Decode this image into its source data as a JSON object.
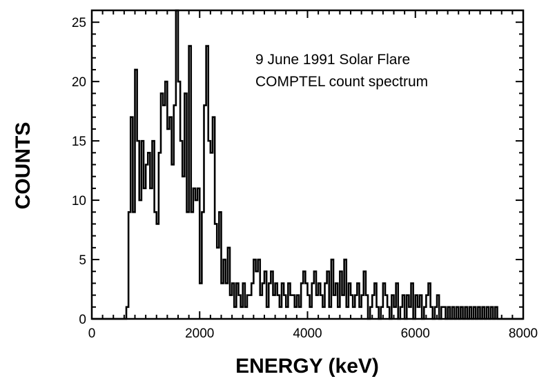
{
  "chart_data": {
    "type": "histogram-step",
    "annotation": [
      "9 June 1991 Solar Flare",
      "COMPTEL count spectrum"
    ],
    "xlabel": "ENERGY (keV)",
    "ylabel": "COUNTS",
    "xlim": [
      0,
      8000
    ],
    "ylim": [
      0,
      26
    ],
    "xticks": [
      0,
      2000,
      4000,
      6000,
      8000
    ],
    "xtick_labels": [
      "0",
      "2000",
      "4000",
      "6000",
      "8000"
    ],
    "yticks": [
      0,
      5,
      10,
      15,
      20,
      25
    ],
    "ytick_labels": [
      "0",
      "5",
      "10",
      "15",
      "20",
      "25"
    ],
    "grid": false,
    "bin_width_keV": 40,
    "bin_starts_keV": [
      640,
      680,
      720,
      760,
      800,
      840,
      880,
      920,
      960,
      1000,
      1040,
      1080,
      1120,
      1160,
      1200,
      1240,
      1280,
      1320,
      1360,
      1400,
      1440,
      1480,
      1520,
      1560,
      1600,
      1640,
      1680,
      1720,
      1760,
      1800,
      1840,
      1880,
      1920,
      1960,
      2000,
      2040,
      2080,
      2120,
      2160,
      2200,
      2240,
      2280,
      2320,
      2360,
      2400,
      2440,
      2480,
      2520,
      2560,
      2600,
      2640,
      2680,
      2720,
      2760,
      2800,
      2840,
      2880,
      2920,
      2960,
      3000,
      3040,
      3080,
      3120,
      3160,
      3200,
      3240,
      3280,
      3320,
      3360,
      3400,
      3440,
      3480,
      3520,
      3560,
      3600,
      3640,
      3680,
      3720,
      3760,
      3800,
      3840,
      3880,
      3920,
      3960,
      4000,
      4040,
      4080,
      4120,
      4160,
      4200,
      4240,
      4280,
      4320,
      4360,
      4400,
      4440,
      4480,
      4520,
      4560,
      4600,
      4640,
      4680,
      4720,
      4760,
      4800,
      4840,
      4880,
      4920,
      4960,
      5000,
      5040,
      5080,
      5120,
      5160,
      5200,
      5240,
      5280,
      5320,
      5360,
      5400,
      5440,
      5480,
      5520,
      5560,
      5600,
      5640,
      5680,
      5720,
      5760,
      5800,
      5840,
      5880,
      5920,
      5960,
      6000,
      6040,
      6080,
      6120,
      6160,
      6200,
      6240,
      6280,
      6320,
      6360,
      6400,
      6440,
      6480,
      6520,
      6560,
      6600,
      6640,
      6680,
      6720,
      6760,
      6800,
      6840,
      6880,
      6920,
      6960,
      7000,
      7040,
      7080,
      7120,
      7160,
      7200,
      7240,
      7280,
      7320,
      7360,
      7400,
      7440,
      7480,
      7520
    ],
    "counts": [
      1,
      9,
      17,
      9,
      21,
      15,
      10,
      15,
      11,
      13,
      14,
      11,
      15,
      9,
      8,
      14,
      19,
      18,
      20,
      16,
      17,
      13,
      18,
      26,
      20,
      15,
      12,
      19,
      9,
      23,
      9,
      11,
      10,
      11,
      3,
      9,
      18,
      23,
      15,
      14,
      17,
      8,
      6,
      9,
      3,
      5,
      3,
      6,
      2,
      3,
      1,
      3,
      2,
      1,
      3,
      1,
      2,
      2,
      3,
      5,
      4,
      5,
      2,
      3,
      4,
      1,
      3,
      4,
      2,
      3,
      2,
      1,
      3,
      2,
      1,
      3,
      2,
      2,
      1,
      2,
      1,
      3,
      4,
      3,
      2,
      1,
      3,
      4,
      2,
      3,
      2,
      1,
      3,
      4,
      1,
      5,
      2,
      3,
      1,
      4,
      2,
      5,
      1,
      3,
      2,
      1,
      2,
      3,
      1,
      2,
      4,
      2,
      0,
      1,
      2,
      3,
      1,
      0,
      1,
      3,
      2,
      1,
      0,
      2,
      1,
      3,
      0,
      1,
      2,
      0,
      2,
      1,
      3,
      0,
      2,
      1,
      2,
      0,
      1,
      2,
      3,
      1,
      0,
      1,
      2,
      0,
      1,
      1,
      0,
      1,
      0,
      1,
      0,
      1,
      0,
      1,
      0,
      1,
      0,
      1,
      0,
      1,
      0,
      1,
      0,
      1,
      0,
      1,
      0,
      1,
      0,
      1,
      0
    ]
  }
}
